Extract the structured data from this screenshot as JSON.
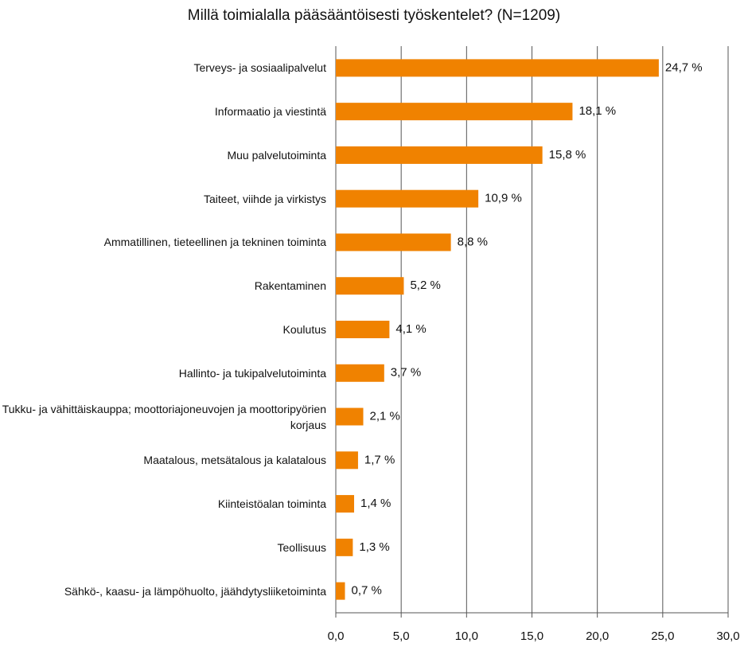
{
  "chart_data": {
    "type": "hbar",
    "title": "Millä toimialalla pääsääntöisesti työskentelet? (N=1209)",
    "categories": [
      "Terveys- ja sosiaalipalvelut",
      "Informaatio ja viestintä",
      "Muu palvelutoiminta",
      "Taiteet, viihde ja virkistys",
      "Ammatillinen, tieteellinen ja tekninen toiminta",
      "Rakentaminen",
      "Koulutus",
      "Hallinto- ja tukipalvelutoiminta",
      "Tukku- ja vähittäiskauppa; moottoriajoneuvojen ja moottoripyörien korjaus",
      "Maatalous, metsätalous ja kalatalous",
      "Kiinteistöalan toiminta",
      "Teollisuus",
      "Sähkö-, kaasu- ja lämpöhuolto, jäähdytysliiketoiminta"
    ],
    "values": [
      24.7,
      18.1,
      15.8,
      10.9,
      8.8,
      5.2,
      4.1,
      3.7,
      2.1,
      1.7,
      1.4,
      1.3,
      0.7
    ],
    "value_labels": [
      "24,7 %",
      "18,1 %",
      "15,8 %",
      "10,9 %",
      "8,8 %",
      "5,2 %",
      "4,1 %",
      "3,7 %",
      "2,1 %",
      "1,7 %",
      "1,4 %",
      "1,3 %",
      "0,7 %"
    ],
    "color": "#f08200",
    "xlim": [
      0,
      30
    ],
    "xticks": [
      {
        "value": 0,
        "label": "0,0"
      },
      {
        "value": 5,
        "label": "5,0"
      },
      {
        "value": 10,
        "label": "10,0"
      },
      {
        "value": 15,
        "label": "15,0"
      },
      {
        "value": 20,
        "label": "20,0"
      },
      {
        "value": 25,
        "label": "25,0"
      },
      {
        "value": 30,
        "label": "30,0"
      }
    ],
    "grid": true
  }
}
